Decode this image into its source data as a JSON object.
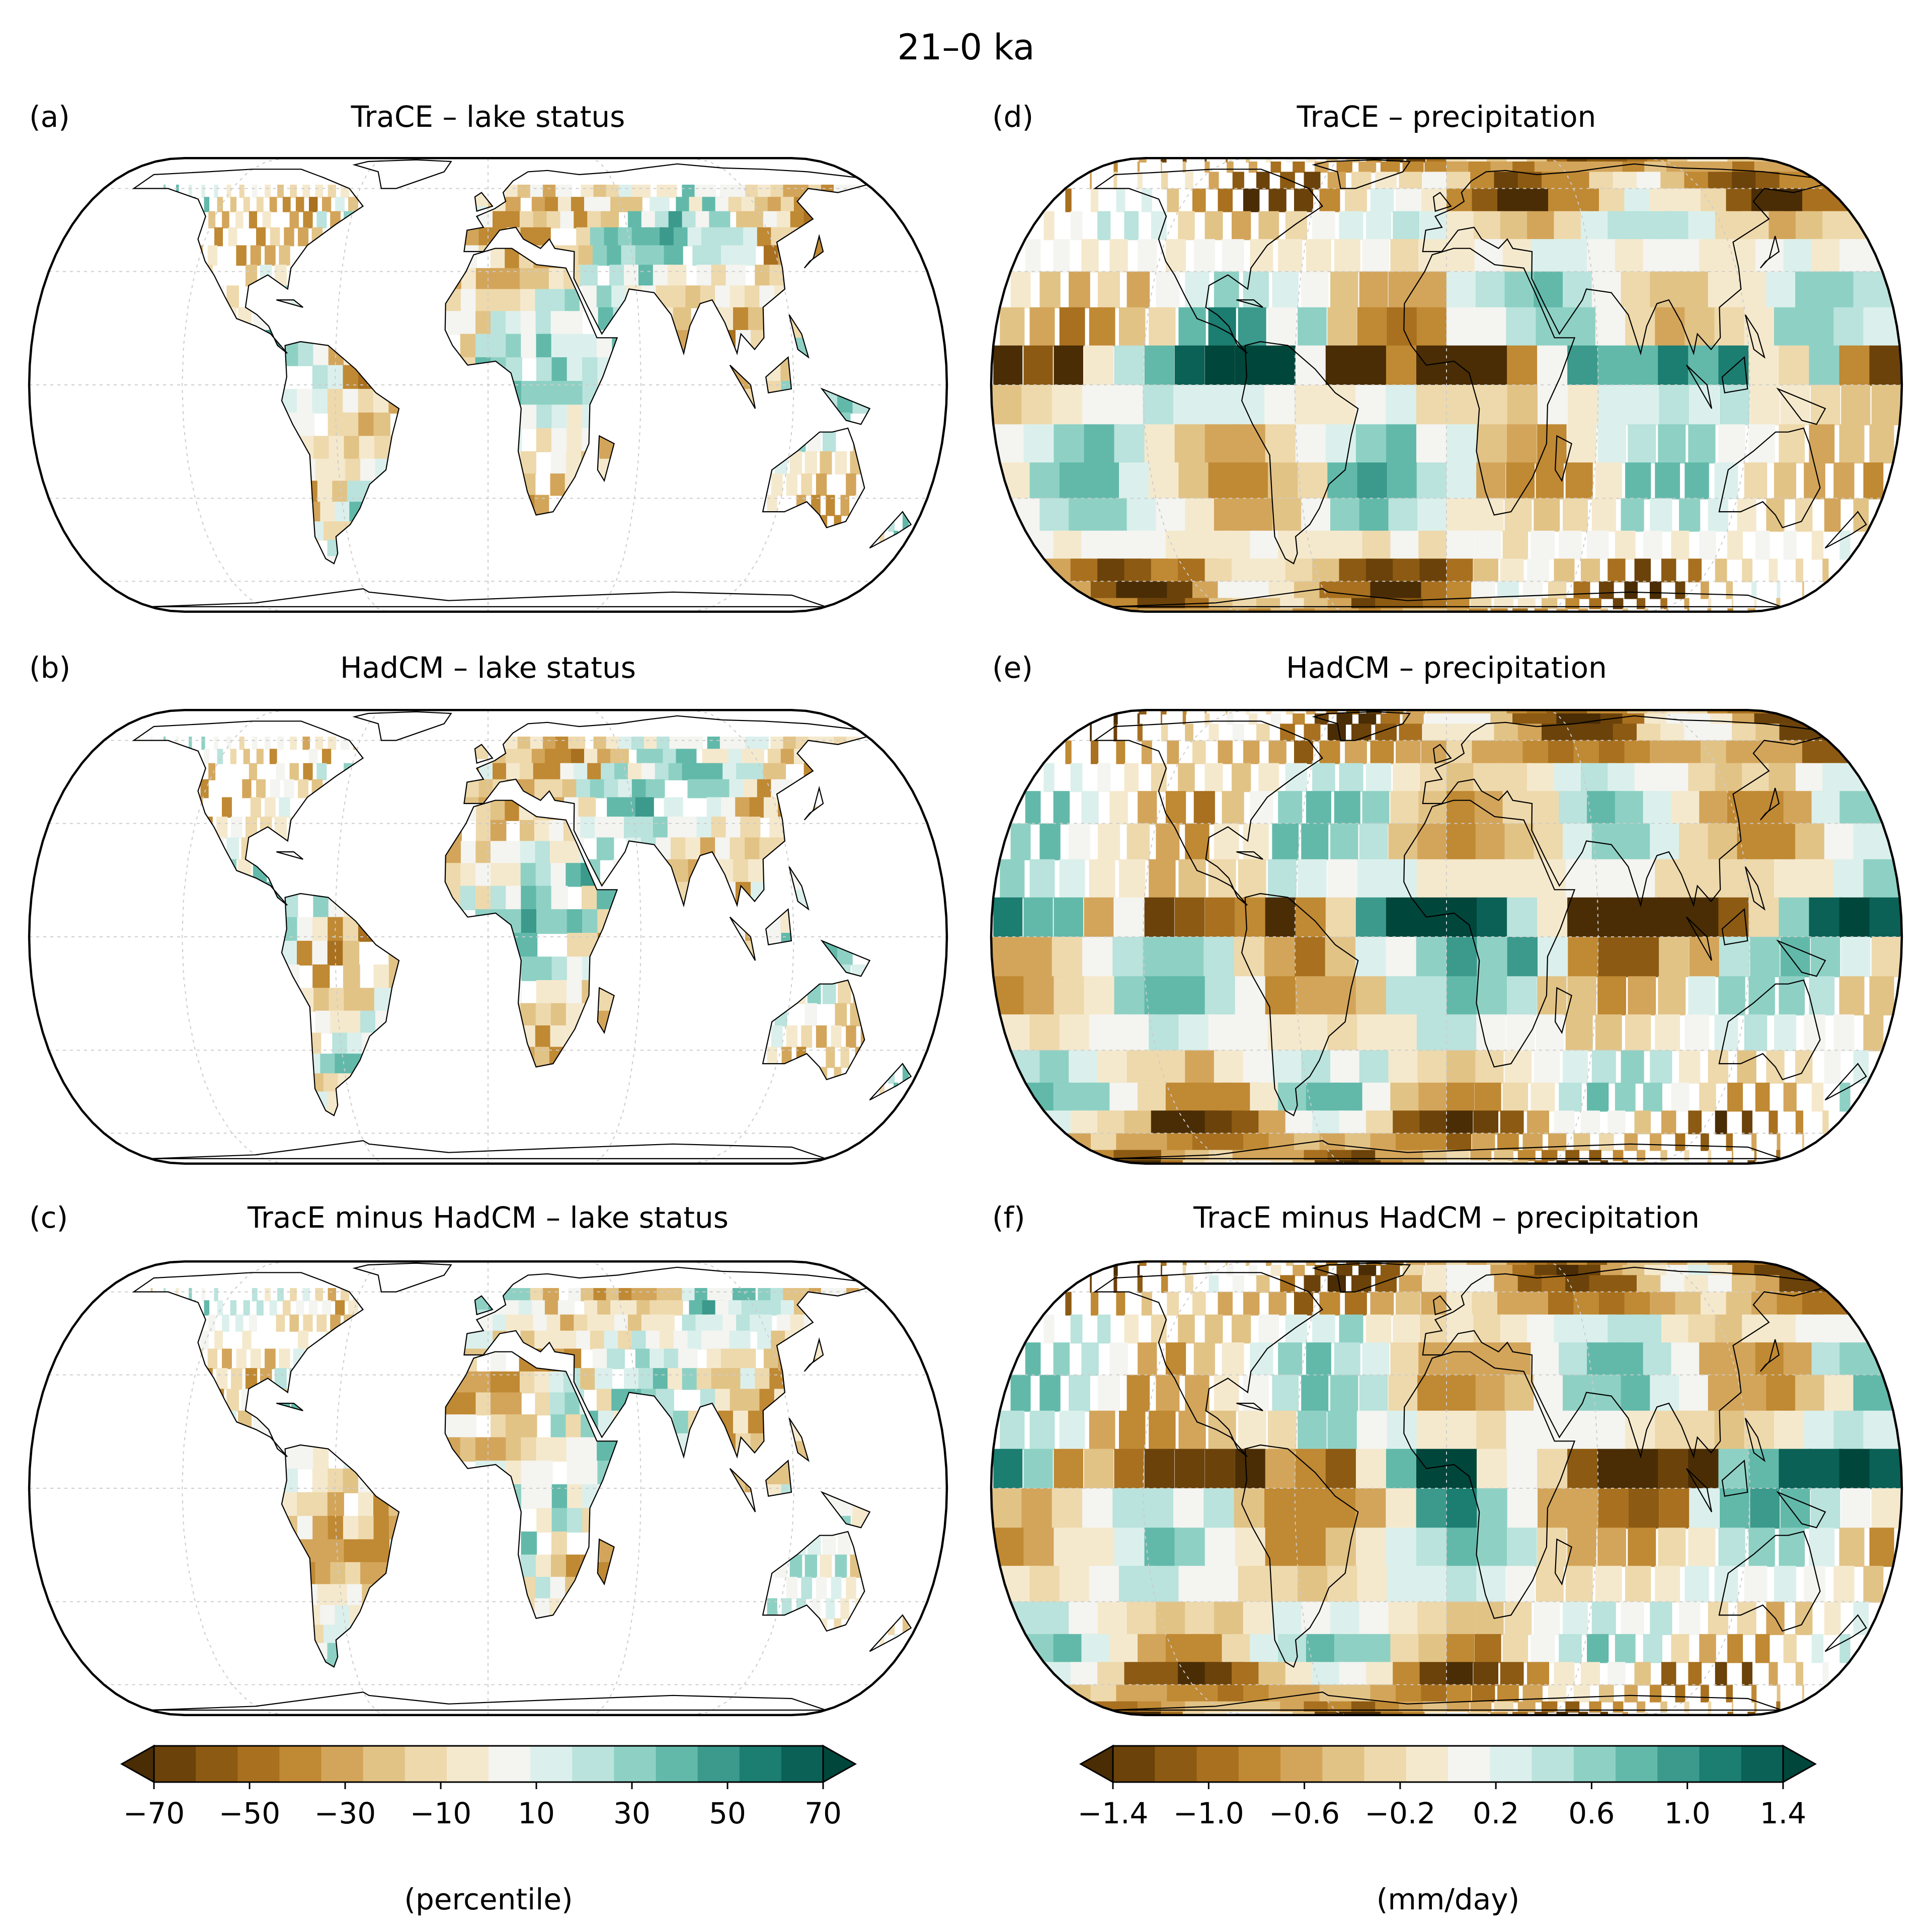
{
  "figure": {
    "title": "21–0 ka"
  },
  "colors": {
    "scale": [
      "#4a2d05",
      "#6b420a",
      "#8c5a12",
      "#a8701f",
      "#c08933",
      "#d3a55a",
      "#e2c386",
      "#eed9ac",
      "#f5e9cd",
      "#f4f4f1",
      "#dbf0ec",
      "#b9e3dc",
      "#8ed1c4",
      "#62b9aa",
      "#3b9a8c",
      "#1c7d71",
      "#0b6155",
      "#00463b"
    ],
    "land_fill": "#ffffff",
    "coast": "#000000",
    "grid": "#cccccc"
  },
  "panels": [
    {
      "id": "a",
      "label": "(a)",
      "title": "TraCE – lake status",
      "field": "lake",
      "seed": 11
    },
    {
      "id": "d",
      "label": "(d)",
      "title": "TraCE – precipitation",
      "field": "precip",
      "seed": 23
    },
    {
      "id": "b",
      "label": "(b)",
      "title": "HadCM – lake status",
      "field": "lake",
      "seed": 37
    },
    {
      "id": "e",
      "label": "(e)",
      "title": "HadCM – precipitation",
      "field": "precip",
      "seed": 41
    },
    {
      "id": "c",
      "label": "(c)",
      "title": "TracE minus HadCM – lake status",
      "field": "lake",
      "seed": 53
    },
    {
      "id": "f",
      "label": "(f)",
      "title": "TracE minus HadCM – precipitation",
      "field": "precip",
      "seed": 67
    }
  ],
  "colorbars": [
    {
      "id": "lake",
      "ticks": [
        "−70",
        "−50",
        "−30",
        "−10",
        "10",
        "30",
        "50",
        "70"
      ],
      "unit": "(percentile)",
      "min": -70,
      "max": 70,
      "step": 10
    },
    {
      "id": "precip",
      "ticks": [
        "−1.4",
        "−1.0",
        "−0.6",
        "−0.2",
        "0.2",
        "0.6",
        "1.0",
        "1.4"
      ],
      "unit": "(mm/day)",
      "min": -1.4,
      "max": 1.4,
      "step": 0.2
    }
  ]
}
